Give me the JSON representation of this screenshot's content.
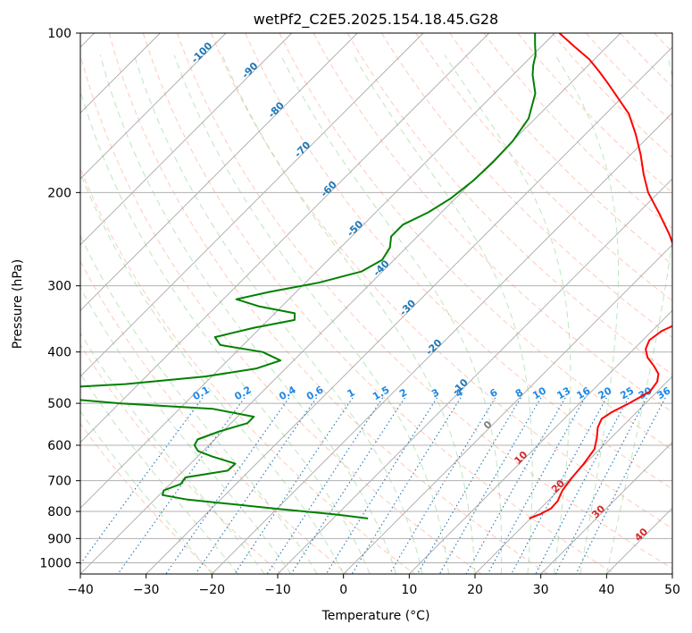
{
  "chart_data": {
    "type": "line",
    "title": "wetPf2_C2E5.2025.154.18.45.G28",
    "xlabel": "Temperature (°C)",
    "ylabel": "Pressure (hPa)",
    "xlim": [
      -40,
      50
    ],
    "ylim": [
      1050,
      100
    ],
    "y_scale": "log",
    "grid": true,
    "x_ticks": [
      -40,
      -30,
      -20,
      -10,
      0,
      10,
      20,
      30,
      40,
      50
    ],
    "y_ticks": [
      100,
      200,
      300,
      400,
      500,
      600,
      700,
      800,
      900,
      1000
    ],
    "x_tick_labels": [
      "−40",
      "−30",
      "−20",
      "−10",
      "0",
      "10",
      "20",
      "30",
      "40",
      "50"
    ],
    "y_tick_labels": [
      "100",
      "200",
      "300",
      "400",
      "500",
      "600",
      "700",
      "800",
      "900",
      "1000"
    ],
    "skew_degrees": 45,
    "isotherm_labels": {
      "values": [
        -100,
        -90,
        -80,
        -70,
        -60,
        -50,
        -40,
        -30,
        -20,
        -10,
        0,
        10,
        20,
        30,
        40
      ],
      "text": [
        "-100",
        "-90",
        "-80",
        "-70",
        "-60",
        "-50",
        "-40",
        "-30",
        "-20",
        "-10",
        "0",
        "10",
        "20",
        "30",
        "40"
      ]
    },
    "mixing_ratio_labels": {
      "pressure_hpa": 488,
      "values": [
        0.1,
        0.2,
        0.4,
        0.6,
        1,
        1.5,
        2,
        3,
        4,
        6,
        8,
        10,
        13,
        16,
        20,
        25,
        30,
        36
      ],
      "text": [
        "0.1",
        "0.2",
        "0.4",
        "0.6",
        "1",
        "1.5",
        "2",
        "3",
        "4",
        "6",
        "8",
        "10",
        "13",
        "16",
        "20",
        "25",
        "30",
        "36"
      ]
    },
    "series": [
      {
        "color": "#ff0000",
        "points": [
          [
            825,
            19.8
          ],
          [
            810,
            20.8
          ],
          [
            790,
            21.6
          ],
          [
            765,
            21.5
          ],
          [
            730,
            20.6
          ],
          [
            690,
            20.1
          ],
          [
            650,
            19.8
          ],
          [
            610,
            19.2
          ],
          [
            580,
            17.8
          ],
          [
            555,
            16.4
          ],
          [
            535,
            15.7
          ],
          [
            520,
            16.2
          ],
          [
            500,
            17.5
          ],
          [
            475,
            18.9
          ],
          [
            455,
            18.5
          ],
          [
            440,
            17.5
          ],
          [
            425,
            15.6
          ],
          [
            410,
            13.4
          ],
          [
            395,
            11.8
          ],
          [
            380,
            11.0
          ],
          [
            365,
            11.5
          ],
          [
            350,
            13.2
          ],
          [
            335,
            13.1
          ],
          [
            318,
            11.6
          ],
          [
            300,
            9.0
          ],
          [
            280,
            5.5
          ],
          [
            260,
            1.8
          ],
          [
            240,
            -2.0
          ],
          [
            220,
            -6.5
          ],
          [
            200,
            -11.6
          ],
          [
            185,
            -15.0
          ],
          [
            170,
            -18.4
          ],
          [
            155,
            -22.4
          ],
          [
            142,
            -26.5
          ],
          [
            132,
            -30.8
          ],
          [
            124,
            -34.5
          ],
          [
            118,
            -37.5
          ],
          [
            112,
            -40.8
          ],
          [
            106,
            -45.0
          ],
          [
            100,
            -49.3
          ]
        ]
      },
      {
        "color": "#008000",
        "points": [
          [
            825,
            -4.7
          ],
          [
            810,
            -10.5
          ],
          [
            790,
            -20.5
          ],
          [
            770,
            -30.0
          ],
          [
            760,
            -35.0
          ],
          [
            745,
            -39.5
          ],
          [
            730,
            -40.0
          ],
          [
            710,
            -38.4
          ],
          [
            690,
            -38.7
          ],
          [
            670,
            -33.3
          ],
          [
            650,
            -33.2
          ],
          [
            630,
            -37.8
          ],
          [
            615,
            -40.8
          ],
          [
            600,
            -42.2
          ],
          [
            585,
            -42.6
          ],
          [
            565,
            -40.5
          ],
          [
            545,
            -37.5
          ],
          [
            530,
            -37.5
          ],
          [
            512,
            -45.0
          ],
          [
            500,
            -60.0
          ],
          [
            478,
            -80.0
          ],
          [
            470,
            -75.0
          ],
          [
            460,
            -62.0
          ],
          [
            445,
            -51.0
          ],
          [
            430,
            -44.5
          ],
          [
            415,
            -42.0
          ],
          [
            400,
            -46.0
          ],
          [
            388,
            -53.5
          ],
          [
            375,
            -55.5
          ],
          [
            360,
            -51.0
          ],
          [
            348,
            -46.0
          ],
          [
            338,
            -47.0
          ],
          [
            328,
            -53.5
          ],
          [
            318,
            -58.0
          ],
          [
            308,
            -54.0
          ],
          [
            296,
            -48.0
          ],
          [
            282,
            -43.2
          ],
          [
            268,
            -41.8
          ],
          [
            254,
            -42.5
          ],
          [
            242,
            -44.0
          ],
          [
            230,
            -44.0
          ],
          [
            218,
            -42.0
          ],
          [
            205,
            -40.7
          ],
          [
            190,
            -40.0
          ],
          [
            175,
            -39.8
          ],
          [
            160,
            -40.0
          ],
          [
            145,
            -41.0
          ],
          [
            130,
            -43.8
          ],
          [
            120,
            -47.0
          ],
          [
            115,
            -48.4
          ],
          [
            110,
            -49.6
          ],
          [
            105,
            -51.3
          ],
          [
            100,
            -53.0
          ]
        ]
      }
    ]
  }
}
